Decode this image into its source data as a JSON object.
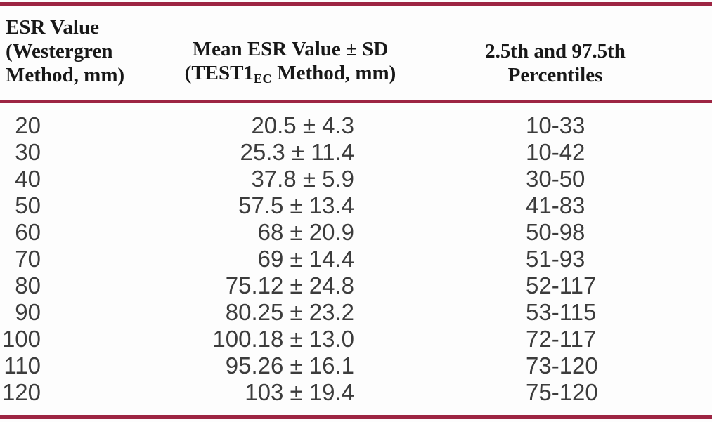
{
  "colors": {
    "rule": "#9D2543",
    "header_text": "#181818",
    "body_text": "#3c3c3c",
    "background": "#fdfdfd"
  },
  "table": {
    "header": {
      "col1_lines": [
        "ESR Value",
        "(Westergren",
        "Method, mm)"
      ],
      "col2_line1": "Mean ESR Value ± SD",
      "col2_line2_pre": "(TEST1",
      "col2_line2_sub": "EC",
      "col2_line2_post": " Method, mm)",
      "col3_line1": "2.5th and 97.5th",
      "col3_line2": "Percentiles"
    },
    "rows": [
      {
        "esr": "20",
        "mean_sd": "20.5 ± 4.3",
        "pct": "10-33"
      },
      {
        "esr": "30",
        "mean_sd": "25.3 ± 11.4",
        "pct": "10-42"
      },
      {
        "esr": "40",
        "mean_sd": "37.8 ± 5.9",
        "pct": "30-50"
      },
      {
        "esr": "50",
        "mean_sd": "57.5 ± 13.4",
        "pct": "41-83"
      },
      {
        "esr": "60",
        "mean_sd": "68 ± 20.9",
        "pct": "50-98"
      },
      {
        "esr": "70",
        "mean_sd": "69 ± 14.4",
        "pct": "51-93"
      },
      {
        "esr": "80",
        "mean_sd": "75.12 ± 24.8",
        "pct": "52-117"
      },
      {
        "esr": "90",
        "mean_sd": "80.25 ± 23.2",
        "pct": "53-115"
      },
      {
        "esr": "100",
        "mean_sd": "100.18 ± 13.0",
        "pct": "72-117"
      },
      {
        "esr": "110",
        "mean_sd": "95.26 ± 16.1",
        "pct": "73-120"
      },
      {
        "esr": "120",
        "mean_sd": "103 ± 19.4",
        "pct": "75-120"
      }
    ]
  }
}
